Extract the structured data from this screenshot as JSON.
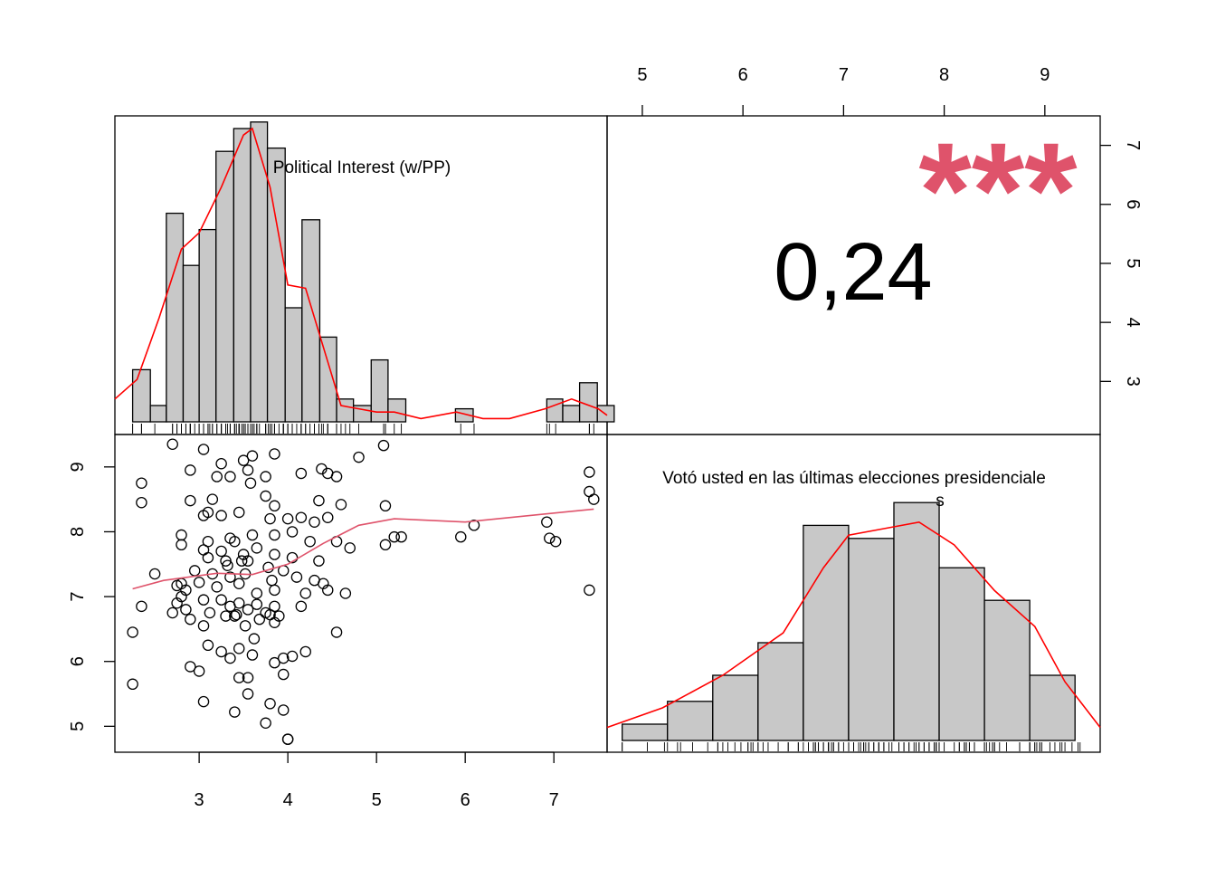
{
  "chart_data": {
    "type": "scatter",
    "correlation_text": "0,24",
    "significance_text": "***",
    "colors": {
      "hist_fill": "#c8c8c8",
      "density": "#ff0000",
      "smooth": "#df536b",
      "stars": "#df536b"
    },
    "var1": {
      "name": "Political Interest (w/PP)",
      "xlim": [
        2.05,
        7.6
      ],
      "bottom_ticks": [
        "3",
        "4",
        "5",
        "6",
        "7"
      ],
      "hist_bins": [
        [
          2.25,
          2.45,
          0.16
        ],
        [
          2.45,
          2.63,
          0.05
        ],
        [
          2.63,
          2.82,
          0.64
        ],
        [
          2.82,
          3.0,
          0.48
        ],
        [
          3.0,
          3.19,
          0.59
        ],
        [
          3.19,
          3.39,
          0.83
        ],
        [
          3.39,
          3.58,
          0.9
        ],
        [
          3.58,
          3.77,
          0.92
        ],
        [
          3.77,
          3.97,
          0.84
        ],
        [
          3.97,
          4.16,
          0.35
        ],
        [
          4.16,
          4.36,
          0.62
        ],
        [
          4.36,
          4.55,
          0.26
        ],
        [
          4.55,
          4.74,
          0.07
        ],
        [
          4.74,
          4.94,
          0.05
        ],
        [
          4.94,
          5.13,
          0.19
        ],
        [
          5.13,
          5.33,
          0.07
        ],
        [
          5.89,
          6.09,
          0.04
        ],
        [
          6.92,
          7.1,
          0.07
        ],
        [
          7.1,
          7.29,
          0.05
        ],
        [
          7.29,
          7.49,
          0.12
        ],
        [
          7.49,
          7.68,
          0.05
        ]
      ],
      "density": [
        [
          2.05,
          0.07
        ],
        [
          2.3,
          0.13
        ],
        [
          2.55,
          0.32
        ],
        [
          2.8,
          0.53
        ],
        [
          3.0,
          0.58
        ],
        [
          3.25,
          0.72
        ],
        [
          3.5,
          0.88
        ],
        [
          3.6,
          0.9
        ],
        [
          3.8,
          0.72
        ],
        [
          4.0,
          0.42
        ],
        [
          4.2,
          0.41
        ],
        [
          4.4,
          0.23
        ],
        [
          4.6,
          0.05
        ],
        [
          4.8,
          0.04
        ],
        [
          5.0,
          0.03
        ],
        [
          5.2,
          0.03
        ],
        [
          5.5,
          0.01
        ],
        [
          5.9,
          0.03
        ],
        [
          6.2,
          0.01
        ],
        [
          6.5,
          0.01
        ],
        [
          6.9,
          0.04
        ],
        [
          7.2,
          0.07
        ],
        [
          7.5,
          0.04
        ],
        [
          7.6,
          0.02
        ]
      ]
    },
    "var2": {
      "name": "Votó usted en las últimas elecciones presidenciale\ns",
      "ylim": [
        4.6,
        9.5
      ],
      "xlim": [
        4.65,
        9.55
      ],
      "left_ticks": [
        "5",
        "6",
        "7",
        "8",
        "9"
      ],
      "top_ticks": [
        "5",
        "6",
        "7",
        "8",
        "9"
      ],
      "right_ticks": [
        "3",
        "4",
        "5",
        "6",
        "7"
      ],
      "right_tick_values": [
        3,
        4,
        5,
        6,
        7
      ],
      "right_ylim": [
        2.1,
        7.5
      ],
      "hist_bins": [
        [
          4.8,
          5.25,
          0.05
        ],
        [
          5.25,
          5.7,
          0.12
        ],
        [
          5.7,
          6.15,
          0.2
        ],
        [
          6.15,
          6.6,
          0.3
        ],
        [
          6.6,
          7.05,
          0.66
        ],
        [
          7.05,
          7.5,
          0.62
        ],
        [
          7.5,
          7.95,
          0.73
        ],
        [
          7.95,
          8.4,
          0.53
        ],
        [
          8.4,
          8.85,
          0.43
        ],
        [
          8.85,
          9.3,
          0.2
        ]
      ],
      "density": [
        [
          4.65,
          0.04
        ],
        [
          5.2,
          0.1
        ],
        [
          5.8,
          0.2
        ],
        [
          6.4,
          0.33
        ],
        [
          6.8,
          0.53
        ],
        [
          7.05,
          0.63
        ],
        [
          7.4,
          0.65
        ],
        [
          7.75,
          0.67
        ],
        [
          8.1,
          0.6
        ],
        [
          8.5,
          0.46
        ],
        [
          8.9,
          0.35
        ],
        [
          9.2,
          0.18
        ],
        [
          9.55,
          0.04
        ]
      ]
    },
    "smooth_line": [
      [
        2.25,
        7.12
      ],
      [
        2.6,
        7.25
      ],
      [
        3.2,
        7.36
      ],
      [
        3.6,
        7.34
      ],
      [
        4.0,
        7.5
      ],
      [
        4.4,
        7.82
      ],
      [
        4.8,
        8.1
      ],
      [
        5.2,
        8.2
      ],
      [
        6.0,
        8.15
      ],
      [
        7.45,
        8.35
      ]
    ],
    "points": [
      [
        2.7,
        9.35
      ],
      [
        3.05,
        9.27
      ],
      [
        3.6,
        9.17
      ],
      [
        3.85,
        9.2
      ],
      [
        4.8,
        9.15
      ],
      [
        5.08,
        9.33
      ],
      [
        2.9,
        8.95
      ],
      [
        3.25,
        9.05
      ],
      [
        3.5,
        9.1
      ],
      [
        3.55,
        8.95
      ],
      [
        3.75,
        8.85
      ],
      [
        4.15,
        8.9
      ],
      [
        4.38,
        8.97
      ],
      [
        4.45,
        8.9
      ],
      [
        7.4,
        8.92
      ],
      [
        2.35,
        8.75
      ],
      [
        3.2,
        8.85
      ],
      [
        3.35,
        8.85
      ],
      [
        3.58,
        8.75
      ],
      [
        4.55,
        8.85
      ],
      [
        7.4,
        8.62
      ],
      [
        7.45,
        8.5
      ],
      [
        2.35,
        8.45
      ],
      [
        2.9,
        8.48
      ],
      [
        3.15,
        8.5
      ],
      [
        3.75,
        8.55
      ],
      [
        3.85,
        8.4
      ],
      [
        4.35,
        8.48
      ],
      [
        4.6,
        8.42
      ],
      [
        5.1,
        8.4
      ],
      [
        3.1,
        8.3
      ],
      [
        3.25,
        8.25
      ],
      [
        3.45,
        8.3
      ],
      [
        3.8,
        8.2
      ],
      [
        4.0,
        8.2
      ],
      [
        4.15,
        8.22
      ],
      [
        4.3,
        8.15
      ],
      [
        4.45,
        8.22
      ],
      [
        3.05,
        8.25
      ],
      [
        2.8,
        7.95
      ],
      [
        3.1,
        7.85
      ],
      [
        3.35,
        7.9
      ],
      [
        3.6,
        7.95
      ],
      [
        3.85,
        7.95
      ],
      [
        4.05,
        8.0
      ],
      [
        4.25,
        7.85
      ],
      [
        4.55,
        7.85
      ],
      [
        4.7,
        7.75
      ],
      [
        5.1,
        7.8
      ],
      [
        5.2,
        7.92
      ],
      [
        5.28,
        7.92
      ],
      [
        5.95,
        7.92
      ],
      [
        6.1,
        8.1
      ],
      [
        6.92,
        8.15
      ],
      [
        6.95,
        7.9
      ],
      [
        7.02,
        7.85
      ],
      [
        2.8,
        7.8
      ],
      [
        3.05,
        7.72
      ],
      [
        3.25,
        7.7
      ],
      [
        3.4,
        7.85
      ],
      [
        3.5,
        7.65
      ],
      [
        3.65,
        7.75
      ],
      [
        3.85,
        7.65
      ],
      [
        4.05,
        7.6
      ],
      [
        4.35,
        7.55
      ],
      [
        3.1,
        7.6
      ],
      [
        3.3,
        7.55
      ],
      [
        3.48,
        7.55
      ],
      [
        3.55,
        7.55
      ],
      [
        3.78,
        7.45
      ],
      [
        3.95,
        7.4
      ],
      [
        2.95,
        7.4
      ],
      [
        3.15,
        7.35
      ],
      [
        3.35,
        7.3
      ],
      [
        3.52,
        7.35
      ],
      [
        3.82,
        7.25
      ],
      [
        4.1,
        7.3
      ],
      [
        4.3,
        7.25
      ],
      [
        4.4,
        7.2
      ],
      [
        2.5,
        7.35
      ],
      [
        2.8,
        7.2
      ],
      [
        2.85,
        7.1
      ],
      [
        3.0,
        7.22
      ],
      [
        3.2,
        7.15
      ],
      [
        3.45,
        7.2
      ],
      [
        3.65,
        7.05
      ],
      [
        3.85,
        7.1
      ],
      [
        4.2,
        7.05
      ],
      [
        4.45,
        7.1
      ],
      [
        4.65,
        7.05
      ],
      [
        2.8,
        7.0
      ],
      [
        3.05,
        6.95
      ],
      [
        3.25,
        6.95
      ],
      [
        3.45,
        6.9
      ],
      [
        3.65,
        6.88
      ],
      [
        3.85,
        6.85
      ],
      [
        4.15,
        6.85
      ],
      [
        2.75,
        6.9
      ],
      [
        2.85,
        6.8
      ],
      [
        3.12,
        6.75
      ],
      [
        3.35,
        6.85
      ],
      [
        3.55,
        6.8
      ],
      [
        3.75,
        6.75
      ],
      [
        3.9,
        6.7
      ],
      [
        3.4,
        6.7
      ],
      [
        2.7,
        6.75
      ],
      [
        2.9,
        6.65
      ],
      [
        3.05,
        6.55
      ],
      [
        3.3,
        6.7
      ],
      [
        3.52,
        6.55
      ],
      [
        3.68,
        6.65
      ],
      [
        3.85,
        6.6
      ],
      [
        4.55,
        6.45
      ],
      [
        3.62,
        6.35
      ],
      [
        2.25,
        6.45
      ],
      [
        2.35,
        6.85
      ],
      [
        2.75,
        7.17
      ],
      [
        3.1,
        6.25
      ],
      [
        3.25,
        6.15
      ],
      [
        3.45,
        6.2
      ],
      [
        3.6,
        6.1
      ],
      [
        3.35,
        6.05
      ],
      [
        3.85,
        5.98
      ],
      [
        3.95,
        6.05
      ],
      [
        4.05,
        6.08
      ],
      [
        4.2,
        6.15
      ],
      [
        2.9,
        5.92
      ],
      [
        3.0,
        5.85
      ],
      [
        3.55,
        5.75
      ],
      [
        3.95,
        5.8
      ],
      [
        2.25,
        5.65
      ],
      [
        3.45,
        5.75
      ],
      [
        3.55,
        5.5
      ],
      [
        3.05,
        5.38
      ],
      [
        3.4,
        5.22
      ],
      [
        3.8,
        5.35
      ],
      [
        3.95,
        5.25
      ],
      [
        3.75,
        5.05
      ],
      [
        4.0,
        4.8
      ],
      [
        4.0,
        4.8
      ],
      [
        3.8,
        6.72
      ],
      [
        3.42,
        6.72
      ],
      [
        3.32,
        7.48
      ],
      [
        7.4,
        7.1
      ]
    ]
  }
}
